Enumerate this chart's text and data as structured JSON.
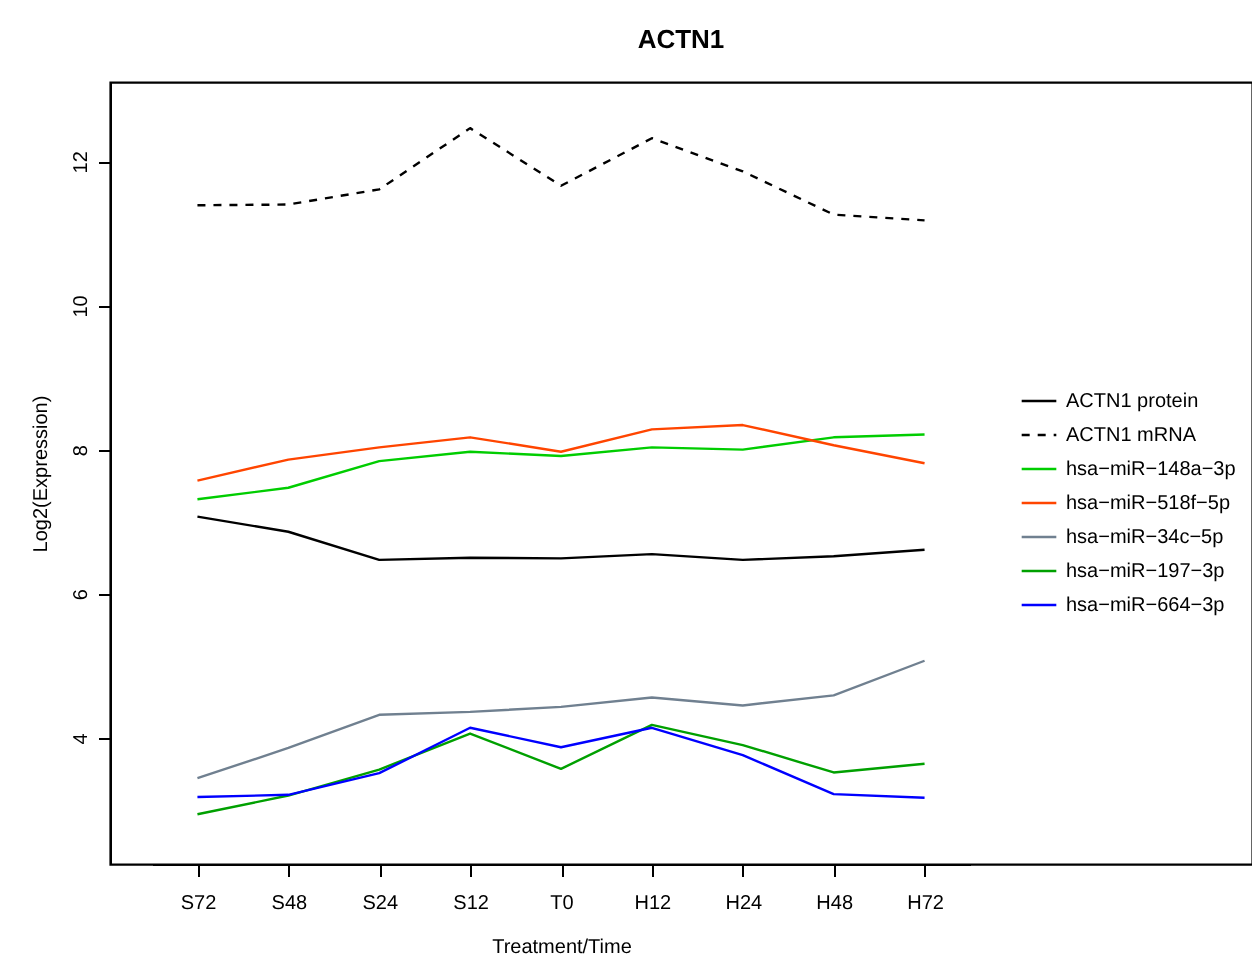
{
  "chart_data": {
    "type": "line",
    "title": "ACTN1",
    "xlabel": "Treatment/Time",
    "ylabel": "Log2(Expression)",
    "categories": [
      "S72",
      "S48",
      "S24",
      "S12",
      "T0",
      "H12",
      "H24",
      "H48",
      "H72"
    ],
    "ylim": [
      2.25,
      13.1
    ],
    "yticks": [
      4,
      6,
      8,
      10,
      12
    ],
    "grid": false,
    "legend": "right",
    "marker": "none",
    "series": [
      {
        "name": "ACTN1 protein",
        "color": "#000000",
        "line_style": "solid",
        "values": [
          7.07,
          6.86,
          6.47,
          6.5,
          6.49,
          6.55,
          6.47,
          6.52,
          6.61
        ]
      },
      {
        "name": "ACTN1 mRNA",
        "color": "#000000",
        "line_style": "dashed",
        "values": [
          11.39,
          11.4,
          11.61,
          12.46,
          11.66,
          12.32,
          11.86,
          11.26,
          11.18
        ]
      },
      {
        "name": "hsa−miR−148a−3p",
        "color": "#00cd00",
        "line_style": "solid",
        "values": [
          7.31,
          7.47,
          7.84,
          7.97,
          7.91,
          8.03,
          8.0,
          8.17,
          8.21
        ]
      },
      {
        "name": "hsa−miR−518f−5p",
        "color": "#ff4500",
        "line_style": "solid",
        "values": [
          7.57,
          7.86,
          8.03,
          8.17,
          7.97,
          8.28,
          8.34,
          8.06,
          7.81
        ]
      },
      {
        "name": "hsa−miR−34c−5p",
        "color": "#708090",
        "line_style": "solid",
        "values": [
          3.44,
          3.86,
          4.32,
          4.36,
          4.43,
          4.56,
          4.45,
          4.59,
          5.07
        ]
      },
      {
        "name": "hsa−miR−197−3p",
        "color": "#00a000",
        "line_style": "solid",
        "values": [
          2.94,
          3.2,
          3.56,
          4.06,
          3.57,
          4.18,
          3.9,
          3.52,
          3.64
        ]
      },
      {
        "name": "hsa−miR−664−3p",
        "color": "#0000ff",
        "line_style": "solid",
        "values": [
          3.18,
          3.21,
          3.51,
          4.14,
          3.87,
          4.14,
          3.76,
          3.22,
          3.17
        ]
      }
    ]
  }
}
